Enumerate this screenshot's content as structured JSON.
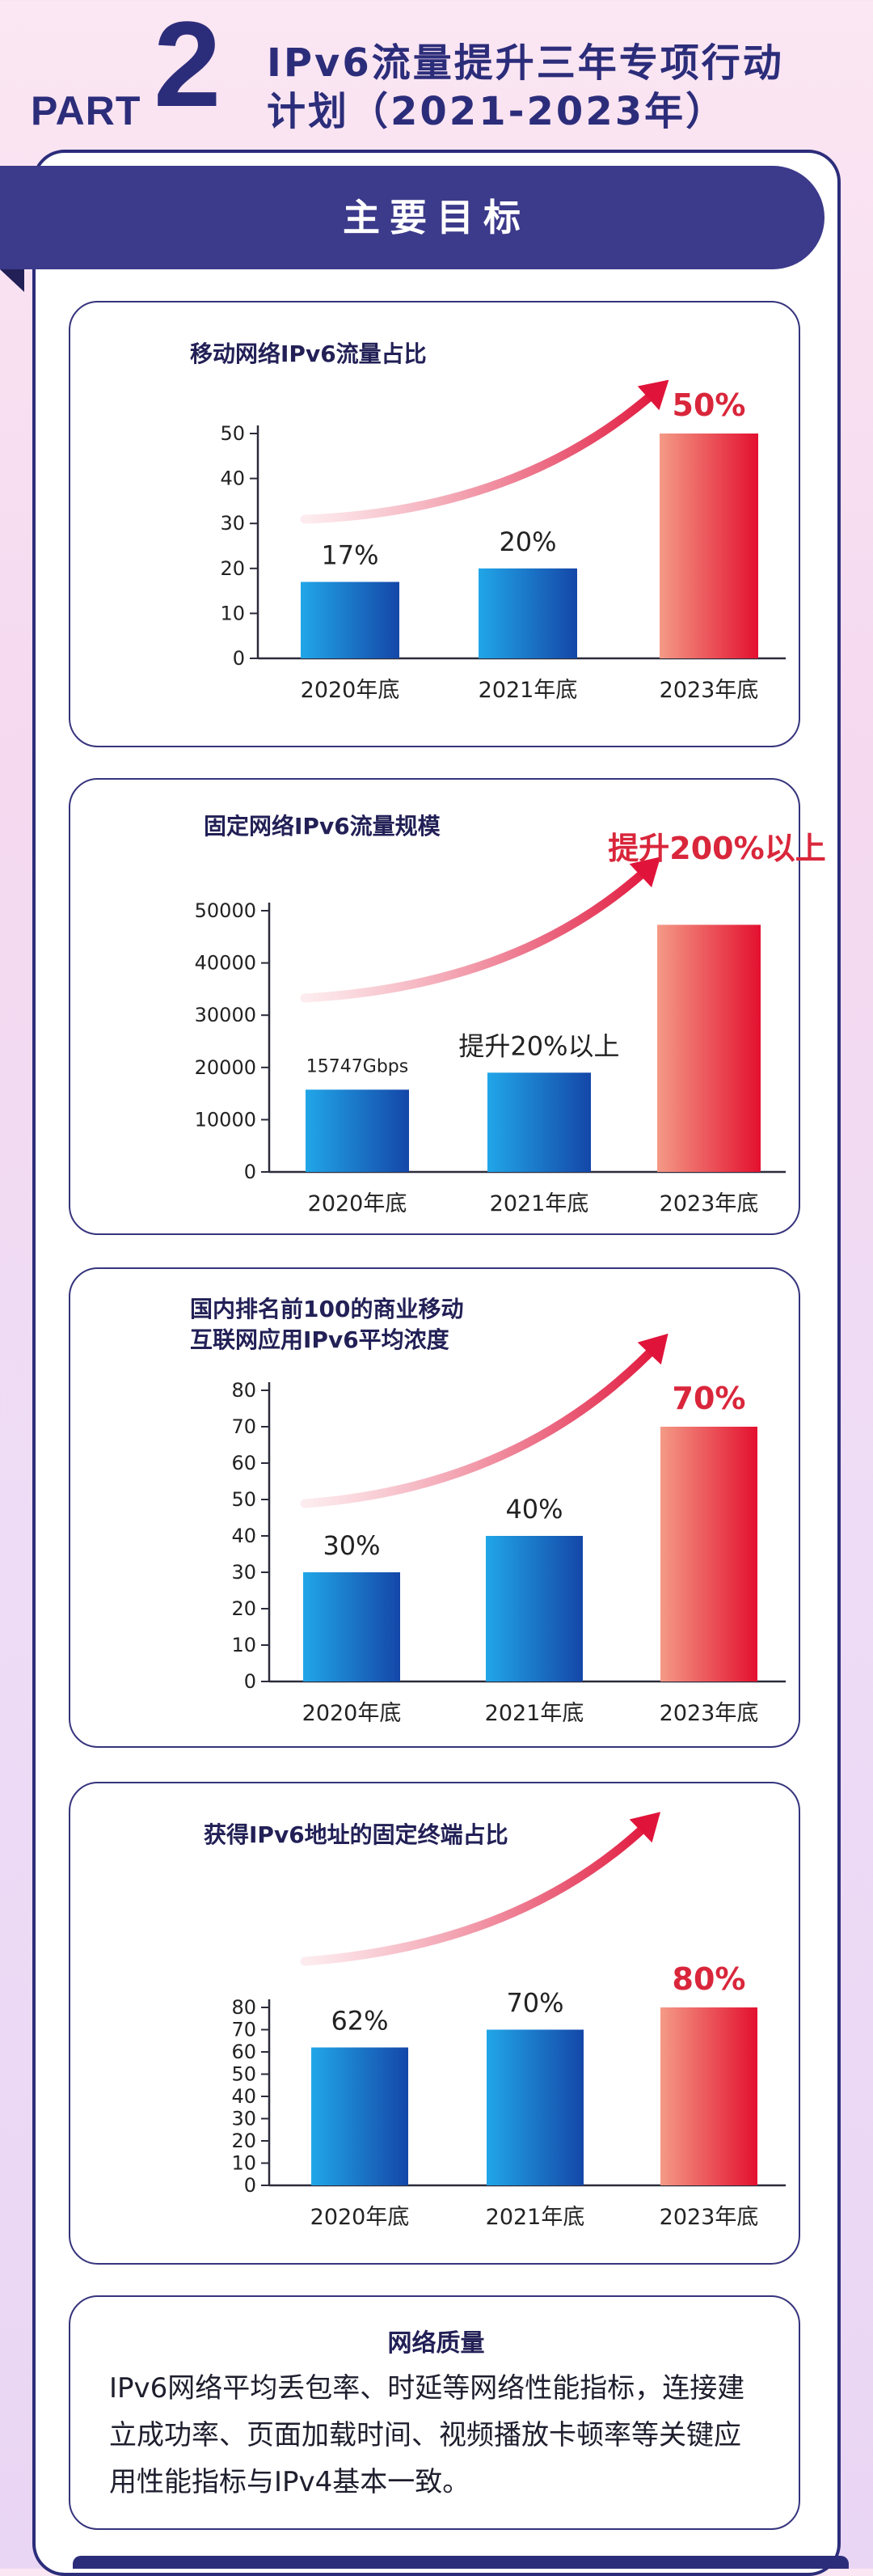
{
  "header": {
    "part_word": "PART",
    "part_number": "2",
    "title_line1": "IPv6流量提升三年专项行动",
    "title_line2": "计划（2021-2023年）"
  },
  "banner": {
    "label": "主要目标"
  },
  "colors": {
    "navy": "#2c2d7a",
    "blue_bar": "#1a74c9",
    "red_bar": "#e8203a",
    "highlight_red": "#d9263b"
  },
  "chart_data": [
    {
      "type": "bar",
      "title": "移动网络IPv6流量占比",
      "categories": [
        "2020年底",
        "2021年底",
        "2023年底"
      ],
      "values": [
        17,
        20,
        50
      ],
      "data_labels": [
        "17%",
        "20%",
        "50%"
      ],
      "ylim": [
        0,
        50
      ],
      "yticks": [
        0,
        10,
        20,
        30,
        40,
        50
      ],
      "highlight_index": 2,
      "trend_arrow": true
    },
    {
      "type": "bar",
      "title": "固定网络IPv6流量规模",
      "categories": [
        "2020年底",
        "2021年底",
        "2023年底"
      ],
      "values": [
        15747,
        19000,
        47300
      ],
      "data_labels": [
        "15747Gbps",
        "提升20%以上",
        ""
      ],
      "callout": "提升200%以上",
      "ylim": [
        0,
        50000
      ],
      "yticks": [
        0,
        10000,
        20000,
        30000,
        40000,
        50000
      ],
      "highlight_index": 2,
      "trend_arrow": true
    },
    {
      "type": "bar",
      "title": "国内排名前100的商业移动\n互联网应用IPv6平均浓度",
      "categories": [
        "2020年底",
        "2021年底",
        "2023年底"
      ],
      "values": [
        30,
        40,
        70
      ],
      "data_labels": [
        "30%",
        "40%",
        "70%"
      ],
      "ylim": [
        0,
        80
      ],
      "yticks": [
        0,
        10,
        20,
        30,
        40,
        50,
        60,
        70,
        80
      ],
      "highlight_index": 2,
      "trend_arrow": true
    },
    {
      "type": "bar",
      "title": "获得IPv6地址的固定终端占比",
      "categories": [
        "2020年底",
        "2021年底",
        "2023年底"
      ],
      "values": [
        62,
        70,
        80
      ],
      "data_labels": [
        "62%",
        "70%",
        "80%"
      ],
      "ylim": [
        0,
        80
      ],
      "yticks": [
        0,
        10,
        20,
        30,
        40,
        50,
        60,
        70,
        80
      ],
      "highlight_index": 2,
      "trend_arrow": true
    }
  ],
  "quality": {
    "title": "网络质量",
    "text": "IPv6网络平均丢包率、时延等网络性能指标，连接建立成功率、页面加载时间、视频播放卡顿率等关键应用性能指标与IPv4基本一致。"
  }
}
